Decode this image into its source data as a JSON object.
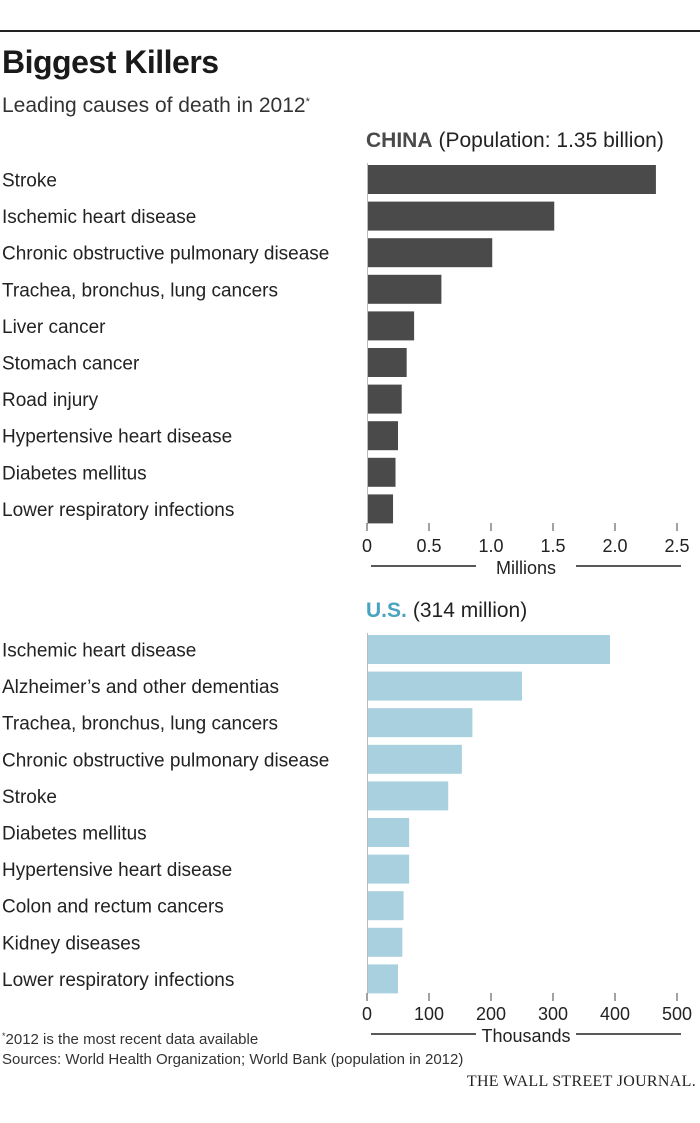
{
  "header": {
    "title": "Biggest Killers",
    "subtitle": "Leading causes of death in 2012",
    "subtitle_mark": "*"
  },
  "chart_data": [
    {
      "type": "bar",
      "orientation": "horizontal",
      "country": "CHINA",
      "population_note": "(Population: 1.35 billion)",
      "color": "#4a4a4a",
      "title_color": "#4a4a4a",
      "categories": [
        "Stroke",
        "Ischemic heart disease",
        "Chronic obstructive pulmonary disease",
        "Trachea, bronchus, lung cancers",
        "Liver cancer",
        "Stomach cancer",
        "Road injury",
        "Hypertensive heart disease",
        "Diabetes mellitus",
        "Lower respiratory infections"
      ],
      "values": [
        2.33,
        1.51,
        1.01,
        0.6,
        0.38,
        0.32,
        0.28,
        0.25,
        0.23,
        0.21
      ],
      "xlim": [
        0,
        2.5
      ],
      "ticks": [
        0,
        0.5,
        1.0,
        1.5,
        2.0,
        2.5
      ],
      "tick_labels": [
        "0",
        "0.5",
        "1.0",
        "1.5",
        "2.0",
        "2.5"
      ],
      "xlabel": "Millions"
    },
    {
      "type": "bar",
      "orientation": "horizontal",
      "country": "U.S.",
      "population_note": "(314 million)",
      "color": "#a8d0de",
      "title_color": "#4aa3bf",
      "categories": [
        "Ischemic heart disease",
        "Alzheimer’s and other dementias",
        "Trachea, bronchus, lung cancers",
        "Chronic obstructive pulmonary disease",
        "Stroke",
        "Diabetes mellitus",
        "Hypertensive heart disease",
        "Colon and rectum cancers",
        "Kidney diseases",
        "Lower respiratory infections"
      ],
      "values": [
        392,
        250,
        170,
        153,
        131,
        68,
        68,
        59,
        57,
        50
      ],
      "xlim": [
        0,
        500
      ],
      "ticks": [
        0,
        100,
        200,
        300,
        400,
        500
      ],
      "tick_labels": [
        "0",
        "100",
        "200",
        "300",
        "400",
        "500"
      ],
      "xlabel": "Thousands"
    }
  ],
  "footer": {
    "footnote_mark": "*",
    "footnote": "2012 is the most recent data available",
    "sources": "Sources: World Health Organization; World Bank (population in 2012)",
    "brand": "THE WALL STREET JOURNAL."
  }
}
